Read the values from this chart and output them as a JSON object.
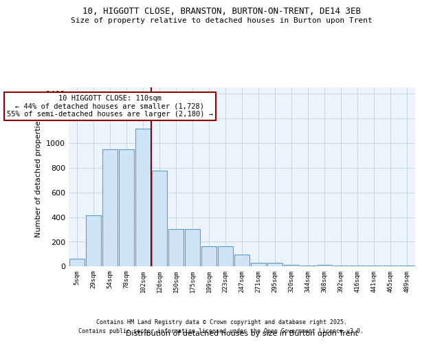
{
  "title1": "10, HIGGOTT CLOSE, BRANSTON, BURTON-ON-TRENT, DE14 3EB",
  "title2": "Size of property relative to detached houses in Burton upon Trent",
  "xlabel": "Distribution of detached houses by size in Burton upon Trent",
  "ylabel": "Number of detached properties",
  "bar_labels": [
    "5sqm",
    "29sqm",
    "54sqm",
    "78sqm",
    "102sqm",
    "126sqm",
    "150sqm",
    "175sqm",
    "199sqm",
    "223sqm",
    "247sqm",
    "271sqm",
    "295sqm",
    "320sqm",
    "344sqm",
    "368sqm",
    "392sqm",
    "416sqm",
    "441sqm",
    "465sqm",
    "489sqm"
  ],
  "bar_values": [
    65,
    415,
    950,
    950,
    1120,
    775,
    305,
    305,
    165,
    165,
    95,
    30,
    30,
    15,
    10,
    15,
    10,
    5,
    5,
    5,
    10
  ],
  "bar_color": "#d0e4f7",
  "bar_edge_color": "#5b9bd5",
  "grid_color": "#c8d8e8",
  "bg_color": "#eef4fb",
  "vline_color": "#8b0000",
  "vline_pos": 4.5,
  "annotation_text": "10 HIGGOTT CLOSE: 110sqm\n← 44% of detached houses are smaller (1,728)\n55% of semi-detached houses are larger (2,180) →",
  "box_color": "#8b0000",
  "footer1": "Contains HM Land Registry data © Crown copyright and database right 2025.",
  "footer2": "Contains public sector information licensed under the Open Government Licence v3.0.",
  "ylim": [
    0,
    1450
  ],
  "yticks": [
    0,
    200,
    400,
    600,
    800,
    1000,
    1200,
    1400
  ]
}
